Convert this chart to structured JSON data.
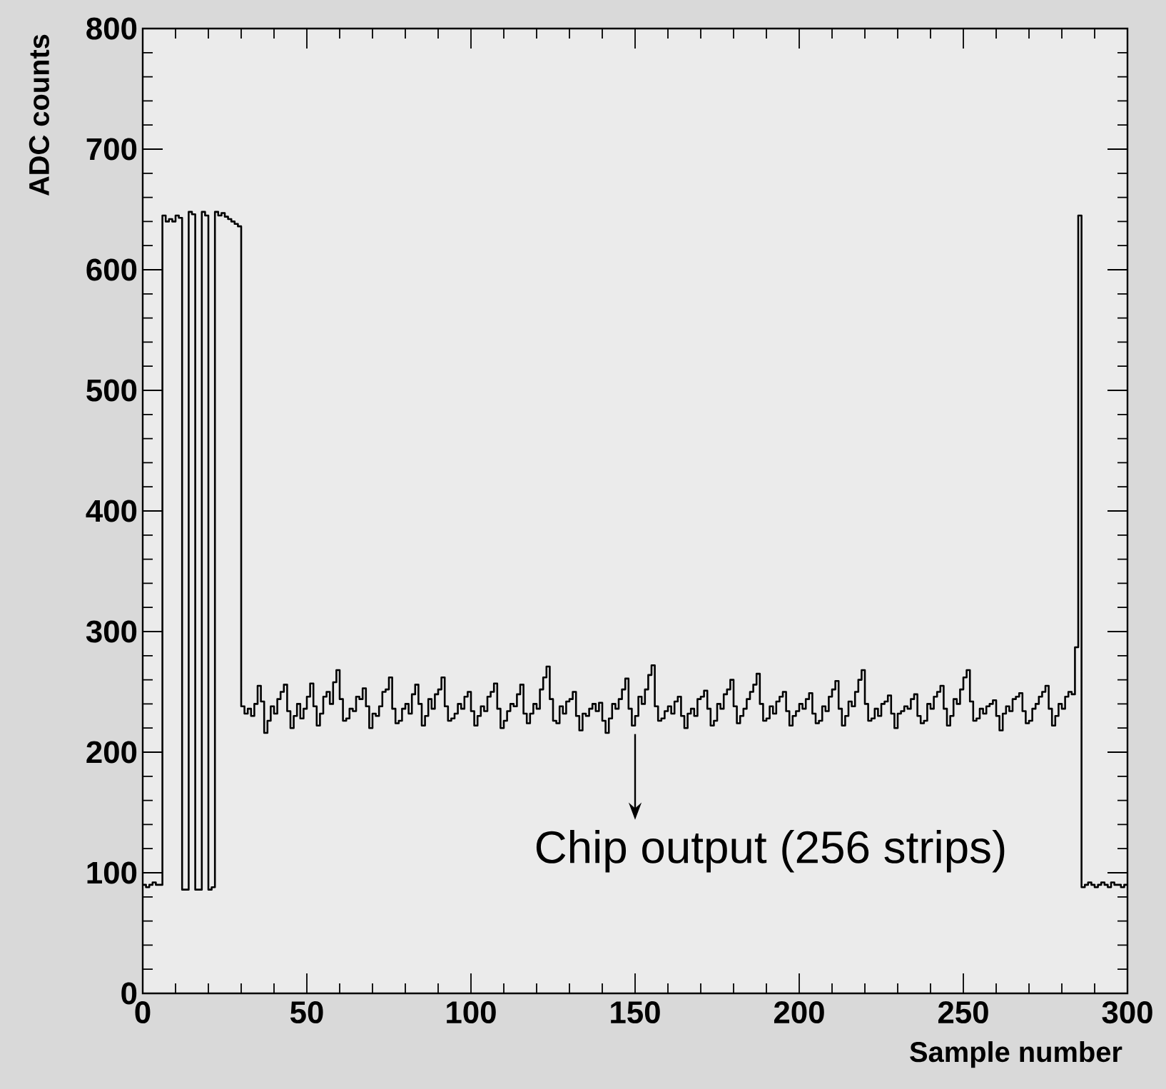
{
  "chart_data": {
    "type": "histogram",
    "xlabel": "Sample number",
    "ylabel": "ADC counts",
    "color": "#000000",
    "xlim": [
      0,
      300
    ],
    "ylim": [
      0,
      800
    ],
    "xticks": [
      0,
      50,
      100,
      150,
      200,
      250,
      300
    ],
    "yticks": [
      0,
      100,
      200,
      300,
      400,
      500,
      600,
      700,
      800
    ],
    "annotations": [
      "Chip output (256 strips)"
    ],
    "bins": [
      0,
      1,
      2,
      3,
      4,
      5,
      6,
      7,
      8,
      9,
      10,
      11,
      12,
      13,
      14,
      15,
      16,
      17,
      18,
      19,
      20,
      21,
      22,
      23,
      24,
      25,
      26,
      27,
      28,
      29,
      30,
      31,
      32,
      33,
      34,
      35,
      36,
      37,
      38,
      39,
      40,
      41,
      42,
      43,
      44,
      45,
      46,
      47,
      48,
      49,
      50,
      51,
      52,
      53,
      54,
      55,
      56,
      57,
      58,
      59,
      60,
      61,
      62,
      63,
      64,
      65,
      66,
      67,
      68,
      69,
      70,
      71,
      72,
      73,
      74,
      75,
      76,
      77,
      78,
      79,
      80,
      81,
      82,
      83,
      84,
      85,
      86,
      87,
      88,
      89,
      90,
      91,
      92,
      93,
      94,
      95,
      96,
      97,
      98,
      99,
      100,
      101,
      102,
      103,
      104,
      105,
      106,
      107,
      108,
      109,
      110,
      111,
      112,
      113,
      114,
      115,
      116,
      117,
      118,
      119,
      120,
      121,
      122,
      123,
      124,
      125,
      126,
      127,
      128,
      129,
      130,
      131,
      132,
      133,
      134,
      135,
      136,
      137,
      138,
      139,
      140,
      141,
      142,
      143,
      144,
      145,
      146,
      147,
      148,
      149,
      150,
      151,
      152,
      153,
      154,
      155,
      156,
      157,
      158,
      159,
      160,
      161,
      162,
      163,
      164,
      165,
      166,
      167,
      168,
      169,
      170,
      171,
      172,
      173,
      174,
      175,
      176,
      177,
      178,
      179,
      180,
      181,
      182,
      183,
      184,
      185,
      186,
      187,
      188,
      189,
      190,
      191,
      192,
      193,
      194,
      195,
      196,
      197,
      198,
      199,
      200,
      201,
      202,
      203,
      204,
      205,
      206,
      207,
      208,
      209,
      210,
      211,
      212,
      213,
      214,
      215,
      216,
      217,
      218,
      219,
      220,
      221,
      222,
      223,
      224,
      225,
      226,
      227,
      228,
      229,
      230,
      231,
      232,
      233,
      234,
      235,
      236,
      237,
      238,
      239,
      240,
      241,
      242,
      243,
      244,
      245,
      246,
      247,
      248,
      249,
      250,
      251,
      252,
      253,
      254,
      255,
      256,
      257,
      258,
      259,
      260,
      261,
      262,
      263,
      264,
      265,
      266,
      267,
      268,
      269,
      270,
      271,
      272,
      273,
      274,
      275,
      276,
      277,
      278,
      279,
      280,
      281,
      282,
      283,
      284,
      285,
      286,
      287,
      288,
      289,
      290,
      291,
      292,
      293,
      294,
      295,
      296,
      297,
      298,
      299,
      300
    ],
    "values": [
      90,
      88,
      90,
      92,
      90,
      90,
      645,
      640,
      642,
      640,
      645,
      643,
      86,
      86,
      648,
      646,
      86,
      86,
      648,
      645,
      86,
      88,
      648,
      645,
      647,
      644,
      642,
      640,
      638,
      636,
      238,
      232,
      236,
      230,
      240,
      255,
      242,
      216,
      226,
      238,
      232,
      244,
      250,
      256,
      234,
      220,
      230,
      240,
      228,
      236,
      246,
      257,
      238,
      222,
      232,
      246,
      250,
      240,
      258,
      268,
      244,
      226,
      228,
      236,
      234,
      246,
      244,
      253,
      238,
      220,
      232,
      230,
      238,
      250,
      252,
      262,
      236,
      224,
      226,
      236,
      240,
      232,
      248,
      256,
      240,
      222,
      230,
      244,
      236,
      248,
      252,
      262,
      238,
      226,
      228,
      232,
      240,
      236,
      246,
      250,
      234,
      222,
      230,
      238,
      234,
      246,
      250,
      257,
      236,
      220,
      226,
      234,
      240,
      238,
      248,
      256,
      232,
      224,
      232,
      240,
      236,
      252,
      262,
      271,
      244,
      226,
      224,
      238,
      232,
      242,
      244,
      250,
      230,
      218,
      232,
      230,
      236,
      240,
      234,
      241,
      226,
      216,
      228,
      240,
      236,
      244,
      252,
      261,
      236,
      222,
      230,
      246,
      240,
      252,
      264,
      272,
      238,
      226,
      228,
      234,
      238,
      232,
      242,
      246,
      230,
      220,
      232,
      236,
      230,
      244,
      246,
      251,
      236,
      222,
      226,
      240,
      236,
      248,
      252,
      260,
      238,
      224,
      230,
      236,
      244,
      250,
      256,
      265,
      240,
      226,
      228,
      238,
      232,
      242,
      246,
      250,
      234,
      222,
      230,
      234,
      240,
      236,
      244,
      249,
      232,
      224,
      226,
      238,
      234,
      246,
      252,
      259,
      236,
      222,
      230,
      242,
      238,
      250,
      260,
      268,
      240,
      226,
      228,
      236,
      230,
      240,
      242,
      247,
      232,
      220,
      232,
      234,
      238,
      236,
      244,
      248,
      230,
      224,
      226,
      240,
      236,
      246,
      250,
      255,
      236,
      222,
      230,
      244,
      240,
      252,
      262,
      268,
      242,
      226,
      228,
      236,
      232,
      238,
      240,
      243,
      230,
      218,
      232,
      238,
      234,
      244,
      246,
      249,
      234,
      224,
      226,
      236,
      240,
      246,
      250,
      255,
      236,
      222,
      230,
      240,
      236,
      246,
      250,
      248,
      287,
      645,
      88,
      90,
      92,
      90,
      88,
      90,
      92,
      90,
      88,
      92,
      90,
      90,
      88,
      90
    ]
  }
}
